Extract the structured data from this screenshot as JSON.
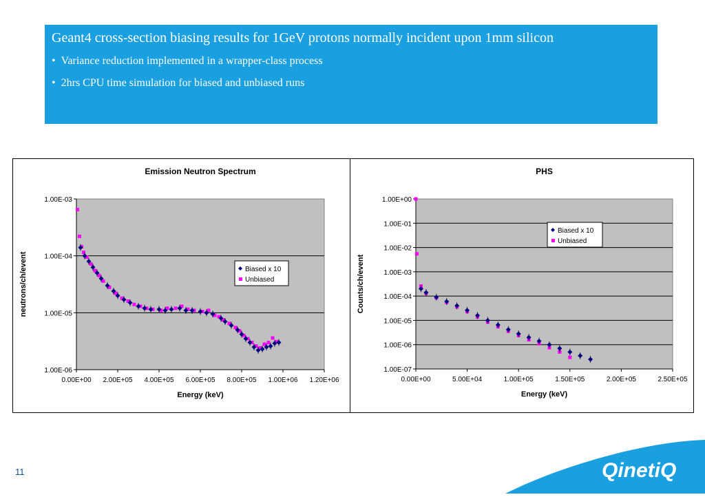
{
  "header": {
    "title": "Geant4 cross-section biasing results for 1GeV protons normally incident upon 1mm silicon",
    "bullets": [
      "Variance reduction implemented in a wrapper-class process",
      "2hrs CPU time simulation for biased and unbiased runs"
    ]
  },
  "page_number": "11",
  "logo_text": "QinetiQ",
  "colors": {
    "banner": "#1a9fe0",
    "plot_bg": "#c0c0c0",
    "biased": "#000080",
    "unbiased": "#ff00ff"
  },
  "chart_data": [
    {
      "type": "scatter",
      "title": "Emission Neutron Spectrum",
      "xlabel": "Energy (keV)",
      "ylabel": "neutrons/ch/event",
      "xlim": [
        0,
        1200000
      ],
      "ylim": [
        1e-06,
        0.001
      ],
      "y_scale": "log",
      "x_ticks": [
        "0.00E+00",
        "2.00E+05",
        "4.00E+05",
        "6.00E+05",
        "8.00E+05",
        "1.00E+06",
        "1.20E+06"
      ],
      "y_ticks": [
        "1.00E-03",
        "1.00E-04",
        "1.00E-05",
        "1.00E-06"
      ],
      "grid": "horizontal",
      "legend_position": "right",
      "series": [
        {
          "name": "Biased x 10",
          "marker": "diamond",
          "x": [
            20000,
            40000,
            60000,
            80000,
            100000,
            120000,
            150000,
            180000,
            200000,
            230000,
            260000,
            300000,
            330000,
            360000,
            400000,
            430000,
            460000,
            500000,
            530000,
            560000,
            600000,
            630000,
            660000,
            700000,
            720000,
            750000,
            780000,
            800000,
            820000,
            840000,
            860000,
            880000,
            900000,
            920000,
            940000,
            960000,
            980000
          ],
          "y": [
            0.00014,
            0.0001,
            8e-05,
            6.3e-05,
            5e-05,
            4e-05,
            3e-05,
            2.4e-05,
            2e-05,
            1.7e-05,
            1.5e-05,
            1.3e-05,
            1.2e-05,
            1.15e-05,
            1.15e-05,
            1.1e-05,
            1.15e-05,
            1.2e-05,
            1.1e-05,
            1.1e-05,
            1.05e-05,
            1e-05,
            9.5e-06,
            8e-06,
            7e-06,
            6e-06,
            5e-06,
            4.2e-06,
            3.5e-06,
            3e-06,
            2.5e-06,
            2.2e-06,
            2.3e-06,
            2.5e-06,
            2.6e-06,
            2.9e-06,
            3e-06
          ]
        },
        {
          "name": "Unbiased",
          "marker": "square",
          "x": [
            5000,
            15000,
            25000,
            35000,
            50000,
            70000,
            90000,
            110000,
            130000,
            160000,
            190000,
            220000,
            250000,
            280000,
            310000,
            340000,
            370000,
            410000,
            440000,
            480000,
            510000,
            540000,
            570000,
            610000,
            640000,
            670000,
            690000,
            710000,
            740000,
            770000,
            790000,
            810000,
            830000,
            850000,
            870000,
            890000,
            910000,
            930000,
            950000,
            970000
          ],
          "y": [
            0.00065,
            0.00022,
            0.000145,
            0.000115,
            9.5e-05,
            7.2e-05,
            5.5e-05,
            4.5e-05,
            3.6e-05,
            2.8e-05,
            2.2e-05,
            1.8e-05,
            1.6e-05,
            1.4e-05,
            1.3e-05,
            1.2e-05,
            1.15e-05,
            1.1e-05,
            1.2e-05,
            1.2e-05,
            1.3e-05,
            1.15e-05,
            1.1e-05,
            1.05e-05,
            1.1e-05,
            9e-06,
            8.5e-06,
            7.5e-06,
            6.5e-06,
            5.5e-06,
            4.8e-06,
            4e-06,
            3.5e-06,
            3e-06,
            2.6e-06,
            2.4e-06,
            2.8e-06,
            3e-06,
            3.6e-06,
            3.1e-06
          ]
        }
      ]
    },
    {
      "type": "scatter",
      "title": "PHS",
      "xlabel": "Energy (keV)",
      "ylabel": "Counts/ch/event",
      "xlim": [
        0,
        250000
      ],
      "ylim": [
        1e-07,
        1
      ],
      "y_scale": "log",
      "x_ticks": [
        "0.00E+00",
        "5.00E+04",
        "1.00E+05",
        "1.50E+05",
        "2.00E+05",
        "2.50E+05"
      ],
      "y_ticks": [
        "1.00E+00",
        "1.00E-01",
        "1.00E-02",
        "1.00E-03",
        "1.00E-04",
        "1.00E-05",
        "1.00E-06",
        "1.00E-07"
      ],
      "grid": "horizontal",
      "legend_position": "top-right",
      "series": [
        {
          "name": "Biased x 10",
          "marker": "diamond",
          "x": [
            5000,
            10000,
            20000,
            30000,
            40000,
            50000,
            60000,
            70000,
            80000,
            90000,
            100000,
            110000,
            120000,
            130000,
            140000,
            150000,
            160000,
            170000
          ],
          "y": [
            0.0002,
            0.00014,
            9e-05,
            6e-05,
            4e-05,
            2.6e-05,
            1.6e-05,
            1e-05,
            6.5e-06,
            4.2e-06,
            2.8e-06,
            2e-06,
            1.4e-06,
            1e-06,
            7e-07,
            5e-07,
            3.5e-07,
            2.5e-07
          ]
        },
        {
          "name": "Unbiased",
          "marker": "square",
          "x": [
            0,
            1000,
            5000,
            10000,
            20000,
            30000,
            40000,
            50000,
            60000,
            70000,
            80000,
            90000,
            100000,
            110000,
            120000,
            130000,
            140000,
            150000
          ],
          "y": [
            1.0,
            0.0055,
            0.00026,
            0.00013,
            8.5e-05,
            5.5e-05,
            3.6e-05,
            2.3e-05,
            1.4e-05,
            8.5e-06,
            5.5e-06,
            3.6e-06,
            2.4e-06,
            1.6e-06,
            1.1e-06,
            7.5e-07,
            5e-07,
            3e-07
          ]
        }
      ]
    }
  ]
}
